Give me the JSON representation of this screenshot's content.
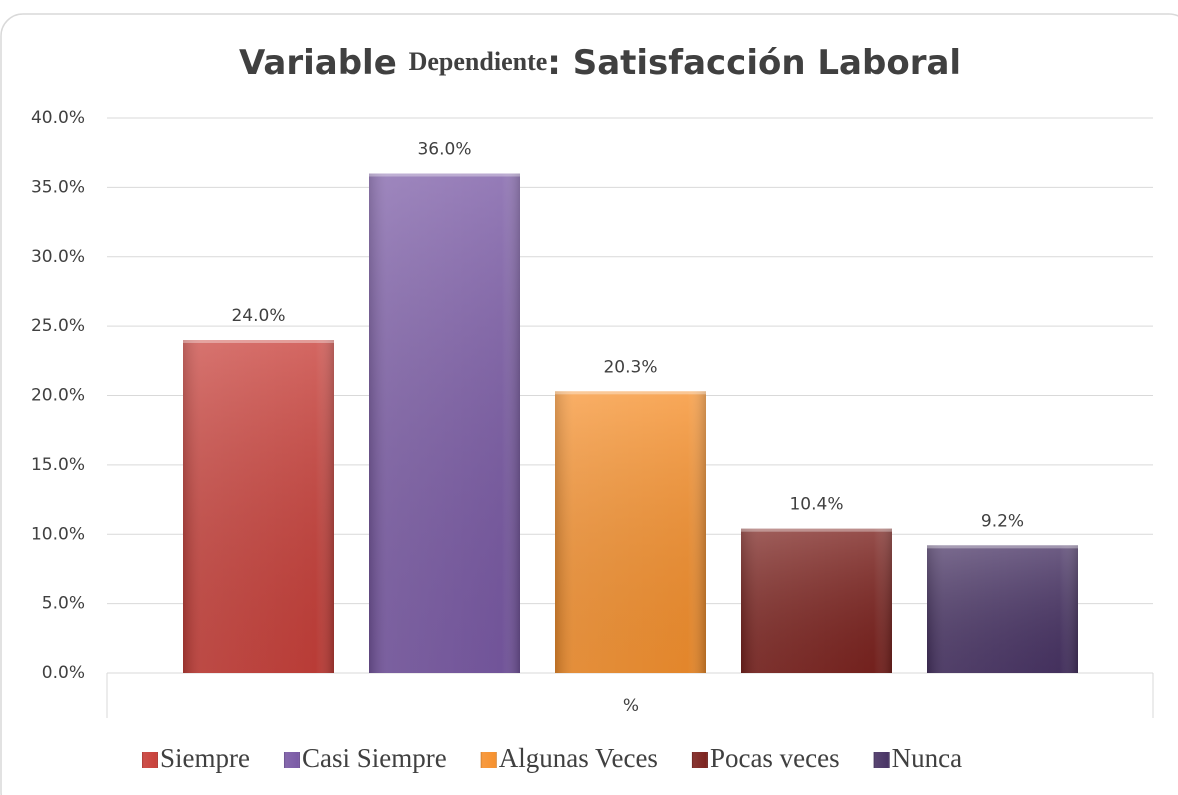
{
  "chart_data": {
    "type": "bar",
    "title": [
      "Variable",
      "Dependiente",
      ": Satisfacción Laboral"
    ],
    "categories": [
      "%"
    ],
    "series": [
      {
        "name": "Siempre",
        "color": "#c9413b",
        "values": [
          24.0
        ],
        "value_labels": [
          "24.0%"
        ]
      },
      {
        "name": "Casi Siempre",
        "color": "#7b5ba6",
        "values": [
          36.0
        ],
        "value_labels": [
          "36.0%"
        ]
      },
      {
        "name": "Algunas Veces",
        "color": "#f7922f",
        "values": [
          20.3
        ],
        "value_labels": [
          "20.3%"
        ]
      },
      {
        "name": "Pocas veces",
        "color": "#7d2420",
        "values": [
          10.4
        ],
        "value_labels": [
          "10.4%"
        ]
      },
      {
        "name": "Nunca",
        "color": "#4a3566",
        "values": [
          9.2
        ],
        "value_labels": [
          "9.2%"
        ]
      }
    ],
    "ylim": [
      0,
      40
    ],
    "yticks": [
      {
        "value": 0,
        "label": "0.0%"
      },
      {
        "value": 5,
        "label": "5.0%"
      },
      {
        "value": 10,
        "label": "10.0%"
      },
      {
        "value": 15,
        "label": "15.0%"
      },
      {
        "value": 20,
        "label": "20.0%"
      },
      {
        "value": 25,
        "label": "25.0%"
      },
      {
        "value": 30,
        "label": "30.0%"
      },
      {
        "value": 35,
        "label": "35.0%"
      },
      {
        "value": 40,
        "label": "40.0%"
      }
    ],
    "grid": true,
    "legend": "bottom"
  }
}
